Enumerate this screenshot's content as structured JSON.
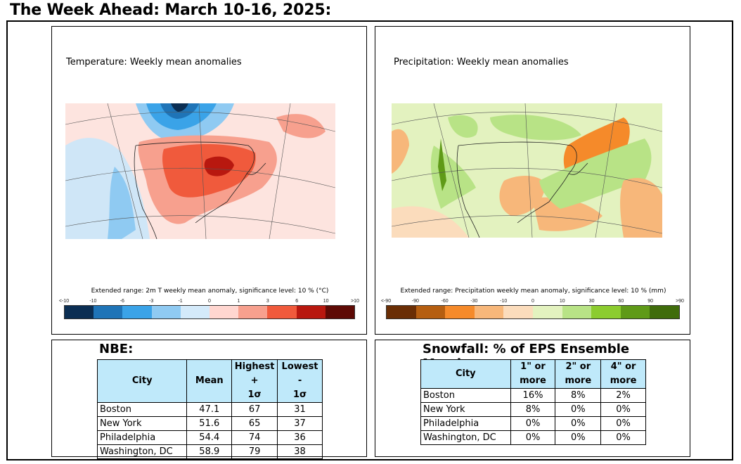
{
  "page": {
    "title": "The Week Ahead: March 10-16, 2025:"
  },
  "temperature_map": {
    "title": "Temperature: Weekly mean anomalies",
    "caption": "Extended range: 2m T weekly mean anomaly, significance level: 10 % (°C)",
    "tick_labels": [
      "<-10",
      "-10",
      "-6",
      "-3",
      "-1",
      "0",
      "1",
      "3",
      "6",
      "10",
      ">10"
    ],
    "colors": [
      "#0b2e53",
      "#1f74b7",
      "#3aa3e8",
      "#8fcaf2",
      "#d4eafa",
      "#ffd6d0",
      "#f7a08e",
      "#f05a3c",
      "#b8180f",
      "#5e0a05"
    ]
  },
  "precip_map": {
    "title": "Precipitation: Weekly mean anomalies",
    "caption": "Extended range: Precipitation weekly mean anomaly, significance level: 10 % (mm)",
    "tick_labels": [
      "<-90",
      "-90",
      "-60",
      "-30",
      "-10",
      "0",
      "10",
      "30",
      "60",
      "90",
      ">90"
    ],
    "colors": [
      "#6a2e05",
      "#b55e10",
      "#f58a2a",
      "#f7b77a",
      "#fbdcbc",
      "#e3f2bf",
      "#b8e386",
      "#8ccc2f",
      "#5f9a18",
      "#3f6c0b"
    ]
  },
  "nbe": {
    "heading": "NBE:",
    "headers": {
      "city": "City",
      "mean": "Mean",
      "high_1": "Highest +",
      "high_2": "1σ",
      "low_1": "Lowest -",
      "low_2": "1σ"
    },
    "rows": [
      {
        "city": "Boston",
        "mean": "47.1",
        "high": "67",
        "low": "31"
      },
      {
        "city": "New York",
        "mean": "51.6",
        "high": "65",
        "low": "37"
      },
      {
        "city": "Philadelphia",
        "mean": "54.4",
        "high": "74",
        "low": "36"
      },
      {
        "city": "Washington, DC",
        "mean": "58.9",
        "high": "79",
        "low": "38"
      }
    ]
  },
  "snowfall": {
    "heading": "Snowfall: % of EPS Ensemble Members:",
    "headers": {
      "city": "City",
      "c1_1": "1\" or",
      "c1_2": "more",
      "c2_1": "2\" or",
      "c2_2": "more",
      "c4_1": "4\" or",
      "c4_2": "more"
    },
    "rows": [
      {
        "city": "Boston",
        "in1": "16%",
        "in2": "8%",
        "in4": "2%"
      },
      {
        "city": "New York",
        "in1": "8%",
        "in2": "0%",
        "in4": "0%"
      },
      {
        "city": "Philadelphia",
        "in1": "0%",
        "in2": "0%",
        "in4": "0%"
      },
      {
        "city": "Washington, DC",
        "in1": "0%",
        "in2": "0%",
        "in4": "0%"
      }
    ]
  }
}
